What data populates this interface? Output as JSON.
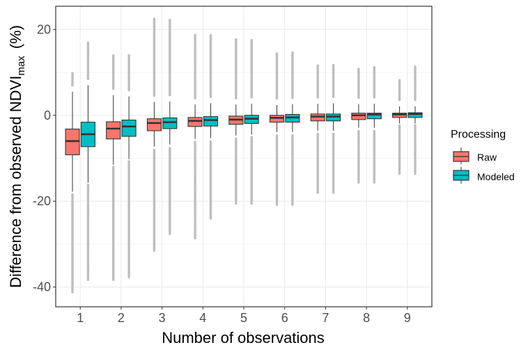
{
  "chart_data": {
    "type": "boxplot",
    "xlabel": "Number of observations",
    "ylabel_main": "Difference from observed NDVI",
    "ylabel_sub": "max",
    "ylabel_unit": "(%)",
    "ylim": [
      -44.6,
      25.4
    ],
    "yticks": [
      -40,
      -20,
      0,
      20
    ],
    "yticks_labels": [
      "-40",
      "-20",
      "0",
      "20"
    ],
    "categories": [
      "1",
      "2",
      "3",
      "4",
      "5",
      "6",
      "7",
      "8",
      "9"
    ],
    "grid": true,
    "legend": {
      "title": "Processing",
      "position": "right"
    },
    "colors": {
      "Raw": "#F8766D",
      "Modeled": "#00BFC4",
      "outlier": "#BEBEBE",
      "outline": "#333333"
    },
    "series": [
      {
        "name": "Raw",
        "boxes": [
          {
            "whisker_low": -17.8,
            "q1": -9.2,
            "median": -6.0,
            "q3": -3.2,
            "whisker_high": 5.5,
            "outlier_min": -41.2,
            "outlier_max": 10.0
          },
          {
            "whisker_low": -11.5,
            "q1": -5.5,
            "median": -3.1,
            "q3": -1.5,
            "whisker_high": 4.7,
            "outlier_min": -38.3,
            "outlier_max": 14.1
          },
          {
            "whisker_low": -7.3,
            "q1": -3.6,
            "median": -1.8,
            "q3": -0.8,
            "whisker_high": 3.1,
            "outlier_min": -31.5,
            "outlier_max": 22.5
          },
          {
            "whisker_low": -5.5,
            "q1": -2.6,
            "median": -1.3,
            "q3": -0.5,
            "whisker_high": 2.5,
            "outlier_min": -28.6,
            "outlier_max": 18.9
          },
          {
            "whisker_low": -4.7,
            "q1": -2.1,
            "median": -1.0,
            "q3": -0.2,
            "whisker_high": 2.5,
            "outlier_min": -20.5,
            "outlier_max": 17.8
          },
          {
            "whisker_low": -3.9,
            "q1": -1.6,
            "median": -0.6,
            "q3": 0.0,
            "whisker_high": 2.4,
            "outlier_min": -20.8,
            "outlier_max": 14.7
          },
          {
            "whisker_low": -3.6,
            "q1": -1.3,
            "median": -0.3,
            "q3": 0.3,
            "whisker_high": 2.7,
            "outlier_min": -18.0,
            "outlier_max": 11.8
          },
          {
            "whisker_low": -2.9,
            "q1": -1.0,
            "median": 0.0,
            "q3": 0.5,
            "whisker_high": 2.6,
            "outlier_min": -15.6,
            "outlier_max": 11.0
          },
          {
            "whisker_low": -1.9,
            "q1": -0.5,
            "median": 0.2,
            "q3": 0.5,
            "whisker_high": 2.1,
            "outlier_min": -13.6,
            "outlier_max": 8.4
          }
        ]
      },
      {
        "name": "Modeled",
        "boxes": [
          {
            "whisker_low": -15.7,
            "q1": -7.3,
            "median": -4.4,
            "q3": -1.6,
            "whisker_high": 7.0,
            "outlier_min": -38.3,
            "outlier_max": 17.1
          },
          {
            "whisker_low": -10.2,
            "q1": -4.9,
            "median": -2.6,
            "q3": -1.1,
            "whisker_high": 4.4,
            "outlier_min": -37.7,
            "outlier_max": 14.1
          },
          {
            "whisker_low": -6.8,
            "q1": -3.1,
            "median": -1.6,
            "q3": -0.6,
            "whisker_high": 3.2,
            "outlier_min": -27.6,
            "outlier_max": 22.5
          },
          {
            "whisker_low": -5.3,
            "q1": -2.5,
            "median": -1.1,
            "q3": -0.3,
            "whisker_high": 2.8,
            "outlier_min": -24.0,
            "outlier_max": 18.9
          },
          {
            "whisker_low": -4.5,
            "q1": -1.9,
            "median": -0.8,
            "q3": 0.0,
            "whisker_high": 2.7,
            "outlier_min": -20.5,
            "outlier_max": 17.8
          },
          {
            "whisker_low": -3.9,
            "q1": -1.6,
            "median": -0.5,
            "q3": 0.2,
            "whisker_high": 2.6,
            "outlier_min": -20.8,
            "outlier_max": 14.7
          },
          {
            "whisker_low": -3.6,
            "q1": -1.3,
            "median": -0.3,
            "q3": 0.3,
            "whisker_high": 2.8,
            "outlier_min": -18.0,
            "outlier_max": 11.8
          },
          {
            "whisker_low": -2.9,
            "q1": -0.8,
            "median": 0.2,
            "q3": 0.5,
            "whisker_high": 2.7,
            "outlier_min": -15.6,
            "outlier_max": 11.2
          },
          {
            "whisker_low": -1.9,
            "q1": -0.5,
            "median": 0.3,
            "q3": 0.6,
            "whisker_high": 2.1,
            "outlier_min": -13.6,
            "outlier_max": 11.4
          }
        ]
      }
    ]
  }
}
